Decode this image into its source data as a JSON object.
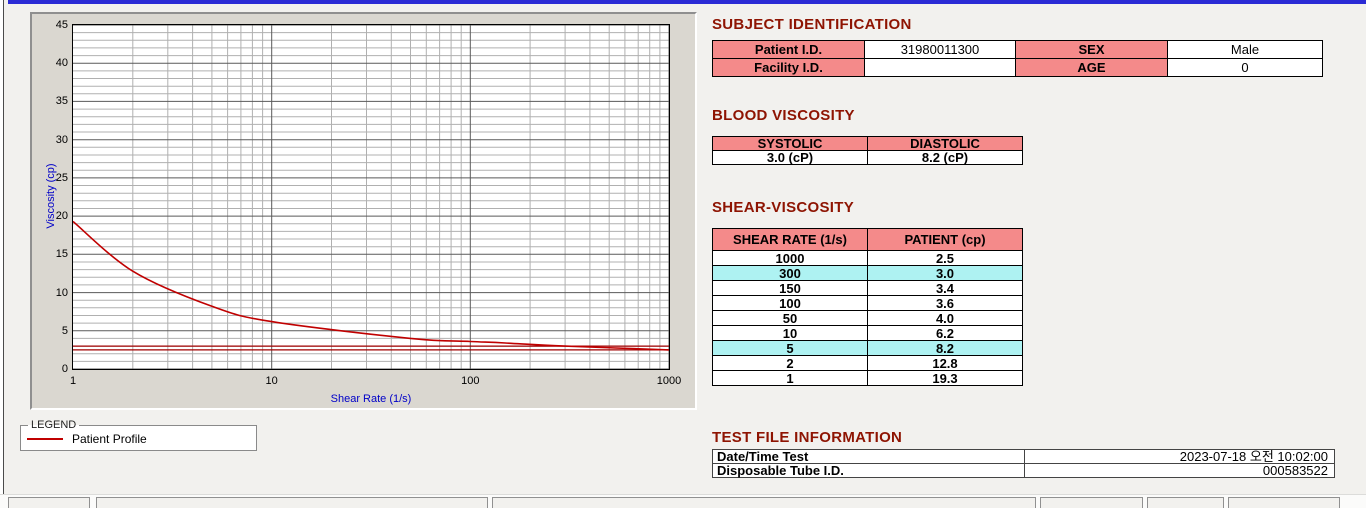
{
  "window": {
    "titlebar_color": "#2b2bd5"
  },
  "chart_data": {
    "type": "line",
    "title": "",
    "xlabel": "Shear Rate (1/s)",
    "ylabel": "Viscosity (cp)",
    "x_scale": "log",
    "xlim": [
      1,
      1000
    ],
    "ylim": [
      0,
      45
    ],
    "x_ticks": [
      1,
      10,
      100,
      1000
    ],
    "y_ticks": [
      0,
      5,
      10,
      15,
      20,
      25,
      30,
      35,
      40,
      45
    ],
    "grid": true,
    "legend_position": "bottom-left",
    "series": [
      {
        "name": "Patient Profile",
        "color": "#c00000",
        "x": [
          1,
          2,
          5,
          10,
          50,
          100,
          150,
          300,
          1000
        ],
        "y": [
          19.3,
          12.8,
          8.2,
          6.2,
          4.0,
          3.6,
          3.4,
          3.0,
          2.5
        ]
      }
    ],
    "reference_lines": [
      {
        "y": 3.0,
        "color": "#a00000"
      },
      {
        "y": 2.5,
        "color": "#a00000"
      }
    ]
  },
  "legend": {
    "title": "LEGEND",
    "entries": [
      {
        "label": "Patient Profile",
        "color": "#c00000"
      }
    ]
  },
  "subject_identification": {
    "title": "SUBJECT IDENTIFICATION",
    "rows": [
      {
        "label1": "Patient I.D.",
        "value1": "31980011300",
        "label2": "SEX",
        "value2": "Male"
      },
      {
        "label1": "Facility I.D.",
        "value1": "",
        "label2": "AGE",
        "value2": "0"
      }
    ]
  },
  "blood_viscosity": {
    "title": "BLOOD VISCOSITY",
    "headers": [
      "SYSTOLIC",
      "DIASTOLIC"
    ],
    "values": [
      "3.0 (cP)",
      "8.2 (cP)"
    ]
  },
  "shear_viscosity": {
    "title": "SHEAR-VISCOSITY",
    "headers": [
      "SHEAR RATE (1/s)",
      "PATIENT (cp)"
    ],
    "rows": [
      {
        "shear_rate": "1000",
        "patient": "2.5",
        "highlight": false
      },
      {
        "shear_rate": "300",
        "patient": "3.0",
        "highlight": true
      },
      {
        "shear_rate": "150",
        "patient": "3.4",
        "highlight": false
      },
      {
        "shear_rate": "100",
        "patient": "3.6",
        "highlight": false
      },
      {
        "shear_rate": "50",
        "patient": "4.0",
        "highlight": false
      },
      {
        "shear_rate": "10",
        "patient": "6.2",
        "highlight": false
      },
      {
        "shear_rate": "5",
        "patient": "8.2",
        "highlight": true
      },
      {
        "shear_rate": "2",
        "patient": "12.8",
        "highlight": false
      },
      {
        "shear_rate": "1",
        "patient": "19.3",
        "highlight": false
      }
    ]
  },
  "test_file_information": {
    "title": "TEST FILE INFORMATION",
    "rows": [
      {
        "label": "Date/Time Test",
        "value": "2023-07-18  오전 10:02:00"
      },
      {
        "label": "Disposable Tube I.D.",
        "value": "000583522"
      }
    ]
  },
  "colors": {
    "section_title": "#8e1402",
    "table_header_bg": "#f48a8a",
    "highlight_bg": "#aef2f2",
    "axis_label": "#0000c8"
  }
}
